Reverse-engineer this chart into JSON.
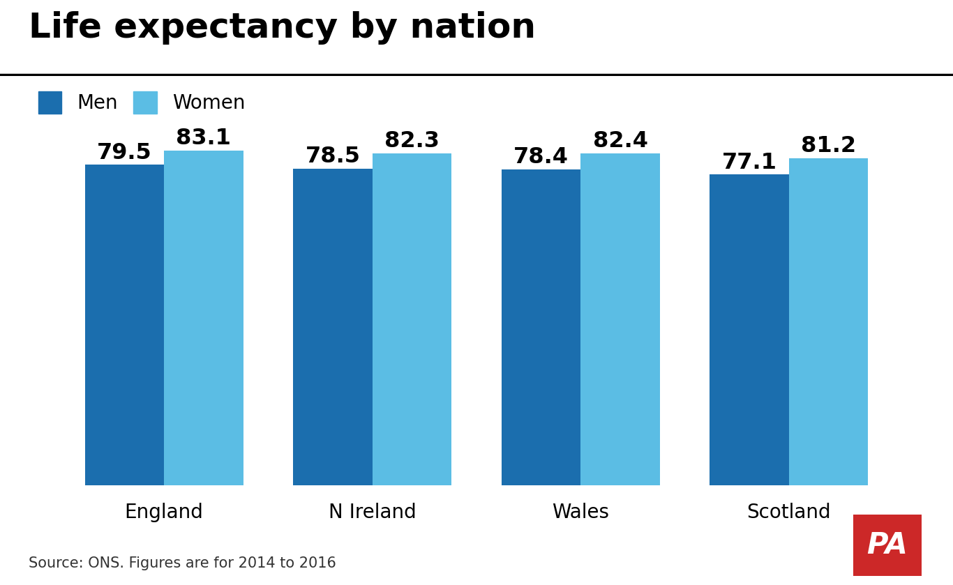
{
  "title": "Life expectancy by nation",
  "nations": [
    "England",
    "N Ireland",
    "Wales",
    "Scotland"
  ],
  "men_values": [
    79.5,
    78.5,
    78.4,
    77.1
  ],
  "women_values": [
    83.1,
    82.3,
    82.4,
    81.2
  ],
  "men_color": "#1b6eae",
  "women_color": "#5bbde4",
  "background_color": "#ffffff",
  "bar_width": 0.38,
  "ylim_min": 0,
  "ylim_max": 87,
  "legend_men": "Men",
  "legend_women": "Women",
  "source_text": "Source: ONS. Figures are for 2014 to 2016",
  "title_fontsize": 36,
  "label_fontsize": 20,
  "value_fontsize": 23,
  "legend_fontsize": 20,
  "source_fontsize": 15,
  "pa_bg_color": "#cc2828",
  "pa_text_color": "#ffffff"
}
